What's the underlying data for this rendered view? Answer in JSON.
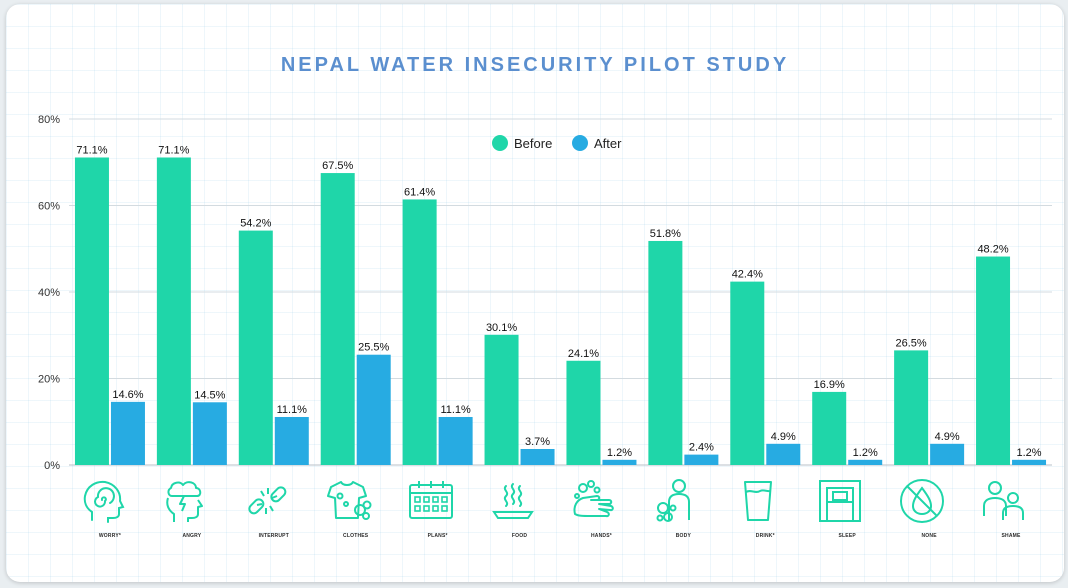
{
  "title": "NEPAL WATER INSECURITY PILOT STUDY",
  "colors": {
    "before": "#1fd6a9",
    "after": "#27abe2",
    "title": "#5b8fcf",
    "icon": "#1fd6a9"
  },
  "chart_data": {
    "type": "bar",
    "title": "NEPAL WATER INSECURITY PILOT STUDY",
    "categories": [
      "WORRY*",
      "ANGRY",
      "INTERRUPT",
      "CLOTHES",
      "PLANS*",
      "FOOD",
      "HANDS*",
      "BODY",
      "DRINK*",
      "SLEEP",
      "NONE",
      "SHAME"
    ],
    "series": [
      {
        "name": "Before",
        "values": [
          71.1,
          71.1,
          54.2,
          67.5,
          61.4,
          30.1,
          24.1,
          51.8,
          42.4,
          16.9,
          26.5,
          48.2
        ],
        "labels": [
          "71.1%",
          "71.1%",
          "54.2%",
          "67.5%",
          "61.4%",
          "30.1%",
          "24.1%",
          "51.8%",
          "42.4%",
          "16.9%",
          "26.5%",
          "48.2%"
        ]
      },
      {
        "name": "After",
        "values": [
          14.6,
          14.5,
          11.1,
          25.5,
          11.1,
          3.7,
          1.2,
          2.4,
          4.9,
          1.2,
          4.9,
          1.2
        ],
        "labels": [
          "14.6%",
          "14.5%",
          "11.1%",
          "25.5%",
          "11.1%",
          "3.7%",
          "1.2%",
          "2.4%",
          "4.9%",
          "1.2%",
          "4.9%",
          "1.2%"
        ]
      }
    ],
    "ylim": [
      0,
      80
    ],
    "yticks": [
      0,
      20,
      40,
      60,
      80
    ],
    "ytick_labels": [
      "0%",
      "20%",
      "40%",
      "60%",
      "80%"
    ],
    "grid": true,
    "legend": "top-center",
    "icons": [
      "spiral-head-icon",
      "storm-head-icon",
      "broken-chain-icon",
      "dirty-shirt-icon",
      "calendar-icon",
      "steaming-plate-icon",
      "washing-hands-icon",
      "body-bubbles-icon",
      "water-glass-icon",
      "bed-icon",
      "no-water-icon",
      "two-people-icon"
    ]
  }
}
